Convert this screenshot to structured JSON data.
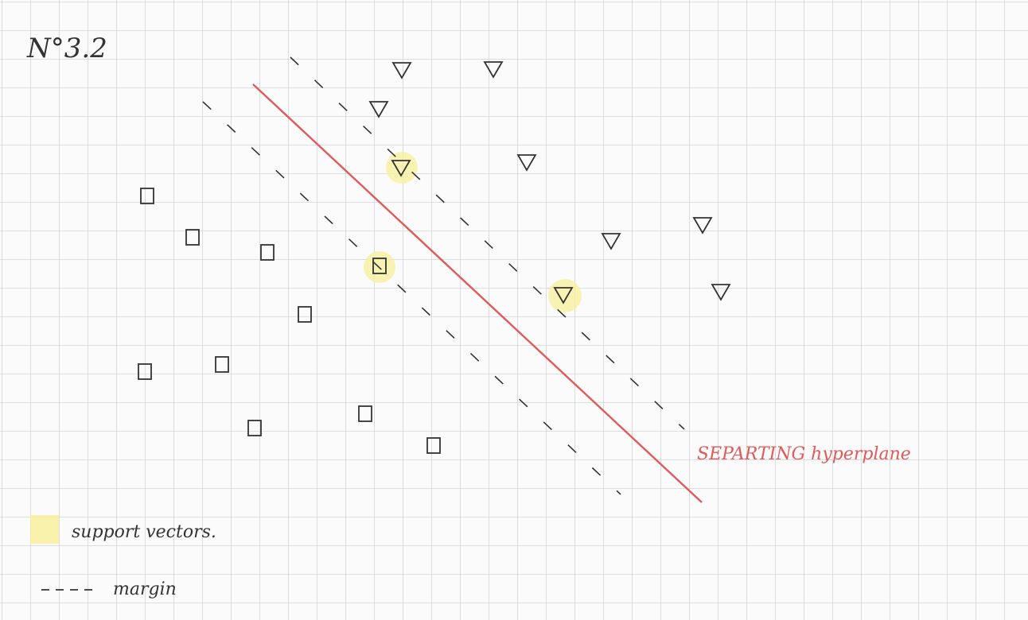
{
  "title": "N°3.2",
  "annotations": {
    "hyperplane": "SEPARTING hyperplane"
  },
  "legend": [
    {
      "label": "support vectors."
    },
    {
      "label": "margin"
    }
  ]
}
